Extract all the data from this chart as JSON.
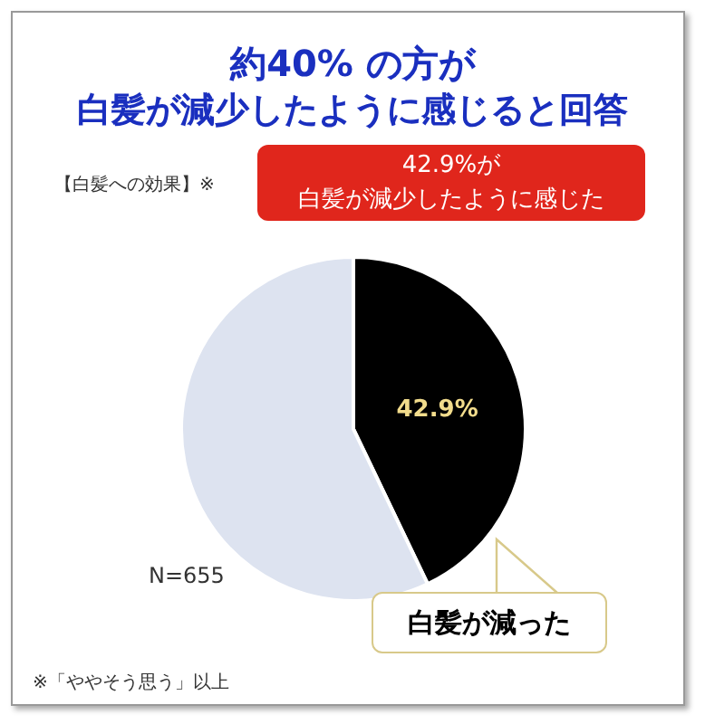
{
  "chart_data": {
    "type": "pie",
    "title": "約40% の方が",
    "subtitle": "白髪が減少したように感じると回答",
    "categories": [
      "白髪が減った",
      null
    ],
    "values": [
      42.9,
      57.1
    ],
    "colors": [
      "#000000",
      "#dde3f0"
    ],
    "value_labels": [
      "42.9%",
      null
    ],
    "annotations": [
      "【白髪への効果】※",
      "42.9%が",
      "白髪が減少したように感じた",
      "N=655",
      "※「ややそう思う」以上"
    ],
    "legend": false
  }
}
